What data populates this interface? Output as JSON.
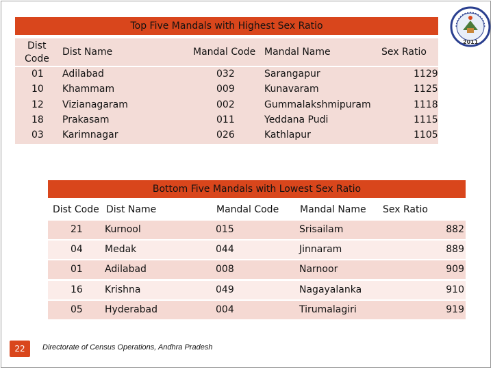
{
  "top": {
    "title": "Top Five Mandals with Highest Sex Ratio",
    "headers": {
      "dist_code_1": "Dist",
      "dist_code_2": "Code",
      "dist_name": "Dist Name",
      "mandal_code": "Mandal Code",
      "mandal_name": "Mandal Name",
      "sex_ratio": "Sex Ratio"
    },
    "rows": [
      {
        "dist_code": "01",
        "dist_name": "Adilabad",
        "mandal_code": "032",
        "mandal_name": "Sarangapur",
        "sex_ratio": "1129"
      },
      {
        "dist_code": "10",
        "dist_name": "Khammam",
        "mandal_code": "009",
        "mandal_name": "Kunavaram",
        "sex_ratio": "1125"
      },
      {
        "dist_code": "12",
        "dist_name": "Vizianagaram",
        "mandal_code": "002",
        "mandal_name": "Gummalakshmipuram",
        "sex_ratio": "1118"
      },
      {
        "dist_code": "18",
        "dist_name": "Prakasam",
        "mandal_code": "011",
        "mandal_name": "Yeddana Pudi",
        "sex_ratio": "1115"
      },
      {
        "dist_code": "03",
        "dist_name": "Karimnagar",
        "mandal_code": "026",
        "mandal_name": "Kathlapur",
        "sex_ratio": "1105"
      }
    ]
  },
  "bottom": {
    "title": "Bottom Five Mandals with Lowest Sex Ratio",
    "headers": {
      "dist_code": "Dist Code",
      "dist_name": "Dist Name",
      "mandal_code": "Mandal Code",
      "mandal_name": "Mandal Name",
      "sex_ratio": "Sex Ratio"
    },
    "rows": [
      {
        "dist_code": "21",
        "dist_name": "Kurnool",
        "mandal_code": "015",
        "mandal_name": "Srisailam",
        "sex_ratio": "882"
      },
      {
        "dist_code": "04",
        "dist_name": "Medak",
        "mandal_code": "044",
        "mandal_name": "Jinnaram",
        "sex_ratio": "889"
      },
      {
        "dist_code": "01",
        "dist_name": "Adilabad",
        "mandal_code": "008",
        "mandal_name": "Narnoor",
        "sex_ratio": "909"
      },
      {
        "dist_code": "16",
        "dist_name": "Krishna",
        "mandal_code": "049",
        "mandal_name": "Nagayalanka",
        "sex_ratio": "910"
      },
      {
        "dist_code": "05",
        "dist_name": "Hyderabad",
        "mandal_code": "004",
        "mandal_name": "Tirumalagiri",
        "sex_ratio": "919"
      }
    ]
  },
  "logo": {
    "text": "Census of India",
    "year": "2011"
  },
  "page_number": "22",
  "footer": "Directorate of Census Operations, Andhra Pradesh",
  "colors": {
    "accent": "#d9461c",
    "row_light": "#f3dcd7",
    "row_lighter": "#fbece9"
  }
}
